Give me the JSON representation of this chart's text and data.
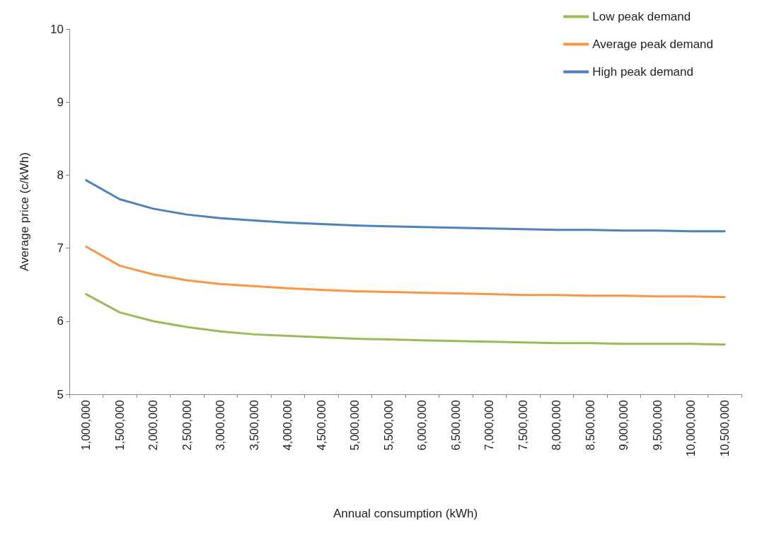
{
  "chart_data": {
    "type": "line",
    "xlabel": "Annual consumption (kWh)",
    "ylabel": "Average price (c/kWh)",
    "categories": [
      "1,000,000",
      "1,500,000",
      "2,000,000",
      "2,500,000",
      "3,000,000",
      "3,500,000",
      "4,000,000",
      "4,500,000",
      "5,000,000",
      "5,500,000",
      "6,000,000",
      "6,500,000",
      "7,000,000",
      "7,500,000",
      "8,000,000",
      "8,500,000",
      "9,000,000",
      "9,500,000",
      "10,000,000",
      "10,500,000"
    ],
    "ylim": [
      5,
      10
    ],
    "yticks": [
      5,
      6,
      7,
      8,
      9,
      10
    ],
    "grid": false,
    "legend": "top right",
    "marker": "none",
    "line_style": "solid",
    "series": [
      {
        "name": "Low peak demand",
        "color": "#9bbb59",
        "values": [
          6.37,
          6.12,
          6.0,
          5.92,
          5.86,
          5.82,
          5.8,
          5.78,
          5.76,
          5.75,
          5.74,
          5.73,
          5.72,
          5.71,
          5.7,
          5.7,
          5.69,
          5.69,
          5.69,
          5.68
        ]
      },
      {
        "name": "Average peak demand",
        "color": "#f79646",
        "values": [
          7.02,
          6.76,
          6.64,
          6.56,
          6.51,
          6.48,
          6.45,
          6.43,
          6.41,
          6.4,
          6.39,
          6.38,
          6.37,
          6.36,
          6.36,
          6.35,
          6.35,
          6.34,
          6.34,
          6.33
        ]
      },
      {
        "name": "High peak demand",
        "color": "#4f81bd",
        "values": [
          7.93,
          7.67,
          7.54,
          7.46,
          7.41,
          7.38,
          7.35,
          7.33,
          7.31,
          7.3,
          7.29,
          7.28,
          7.27,
          7.26,
          7.25,
          7.25,
          7.24,
          7.24,
          7.23,
          7.23
        ]
      }
    ]
  }
}
